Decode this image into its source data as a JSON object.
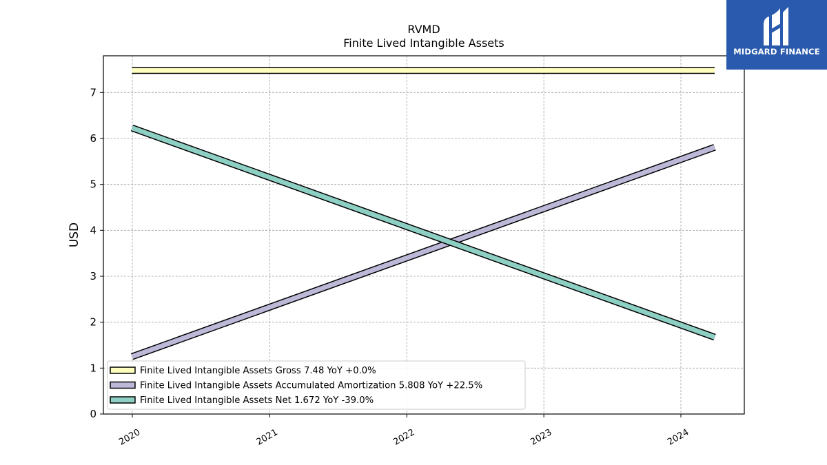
{
  "chart_data": {
    "type": "line",
    "title": "RVMD",
    "subtitle": "Finite Lived Intangible Assets",
    "ylabel": "USD",
    "xlabel": "",
    "ylim": [
      0,
      7.8
    ],
    "y_ticks": [
      0,
      1,
      2,
      3,
      4,
      5,
      6,
      7
    ],
    "x_ticks": [
      "2020",
      "2021",
      "2022",
      "2023",
      "2024"
    ],
    "grid": true,
    "legend_position": "lower-left",
    "series": [
      {
        "name": "Finite Lived Intangible Assets Gross",
        "legend_label": "Finite Lived Intangible Assets Gross  7.48 YoY +0.0%",
        "color": "#ffffc0",
        "x": [
          "2019-12-31",
          "2024-03-31"
        ],
        "values": [
          7.48,
          7.48
        ]
      },
      {
        "name": "Finite Lived Intangible Assets Accumulated Amortization",
        "legend_label": "Finite Lived Intangible Assets Accumulated Amortization  5.808 YoY +22.5%",
        "color": "#bcb8d8",
        "x": [
          "2019-12-31",
          "2024-03-31"
        ],
        "values": [
          1.25,
          5.808
        ]
      },
      {
        "name": "Finite Lived Intangible Assets Net",
        "legend_label": "Finite Lived Intangible Assets Net  1.672 YoY -39.0%",
        "color": "#8ecfc4",
        "x": [
          "2019-12-31",
          "2024-03-31"
        ],
        "values": [
          6.23,
          1.672
        ]
      }
    ]
  },
  "logo": {
    "text": "MIDGARD FINANCE",
    "color": "#2a5aad"
  }
}
